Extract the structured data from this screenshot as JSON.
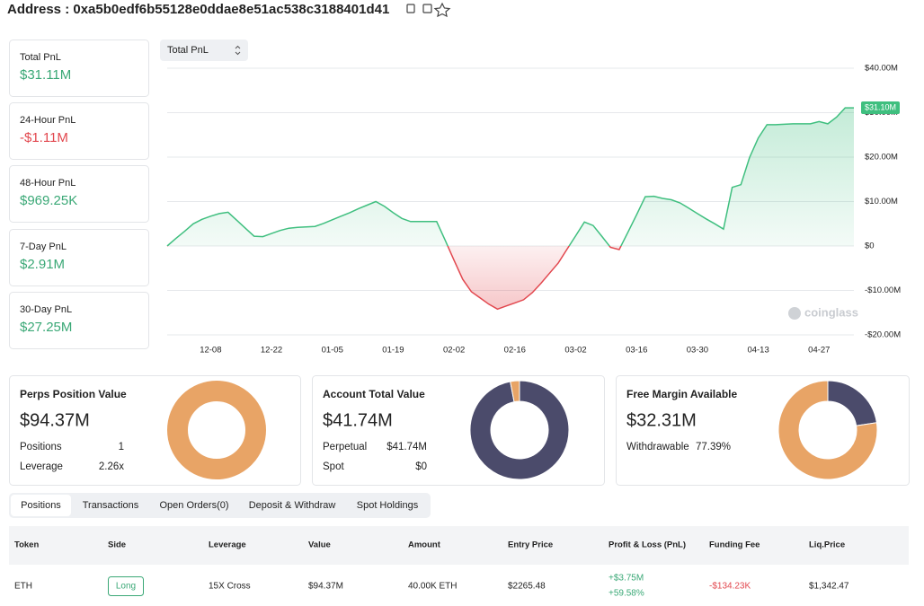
{
  "header": {
    "address": "Address : 0xa5b0edf6b55128e0ddae8e51ac538c3188401d41"
  },
  "pnl_cards": [
    {
      "label": "Total PnL",
      "value": "$31.11M"
    },
    {
      "label": "24-Hour PnL",
      "value": "-$1.11M"
    },
    {
      "label": "48-Hour PnL",
      "value": "$969.25K"
    },
    {
      "label": "7-Day PnL",
      "value": "$2.91M"
    },
    {
      "label": "30-Day PnL",
      "value": "$27.25M"
    }
  ],
  "dropdown": "Total PnL",
  "chart_data": [
    {
      "type": "area",
      "categories": [
        null,
        null,
        null,
        null,
        null,
        "12-08",
        null,
        null,
        null,
        null,
        null,
        null,
        "12-22",
        null,
        null,
        null,
        null,
        null,
        null,
        "01-05",
        null,
        null,
        null,
        null,
        null,
        null,
        "01-19",
        null,
        null,
        null,
        null,
        null,
        null,
        "02-02",
        null,
        null,
        null,
        null,
        null,
        null,
        "02-16",
        null,
        null,
        null,
        null,
        null,
        null,
        "03-02",
        null,
        null,
        null,
        null,
        null,
        null,
        "03-16",
        null,
        null,
        null,
        null,
        null,
        null,
        "03-30",
        null,
        null,
        null,
        null,
        null,
        null,
        "04-13",
        null,
        null,
        null,
        null,
        null,
        null,
        "04-27",
        null,
        null,
        null,
        null
      ],
      "values": [
        0,
        1.7,
        3.3,
        5.0,
        6.0,
        6.7,
        7.3,
        7.6,
        5.8,
        4.0,
        2.2,
        2.1,
        2.8,
        3.5,
        4.0,
        4.2,
        4.3,
        4.4,
        5.1,
        5.9,
        6.7,
        7.5,
        8.4,
        9.2,
        10.0,
        8.9,
        7.5,
        6.2,
        5.5,
        5.5,
        5.5,
        5.5,
        1.2,
        -3.2,
        -7.5,
        -10.3,
        -11.7,
        -13.1,
        -14.2,
        -13.5,
        -12.8,
        -12.1,
        -10.5,
        -8.4,
        -6.1,
        -3.8,
        -0.7,
        2.3,
        5.4,
        4.6,
        2.2,
        -0.3,
        -0.8,
        3.1,
        7.0,
        11.1,
        11.2,
        10.7,
        10.4,
        9.7,
        8.5,
        7.3,
        6.1,
        5.0,
        3.8,
        13.2,
        13.8,
        19.9,
        24.3,
        27.3,
        27.3,
        27.4,
        27.5,
        27.5,
        27.5,
        28.0,
        27.5,
        29.0,
        31.1,
        31.1
      ],
      "value_labels": [
        null,
        null,
        null,
        null,
        null,
        null,
        null,
        null,
        null,
        null,
        null,
        null,
        null,
        null,
        null,
        null,
        null,
        null,
        null,
        null,
        null,
        null,
        null,
        null,
        null,
        null,
        null,
        null,
        null,
        null,
        null,
        null,
        null,
        null,
        null,
        null,
        null,
        null,
        null,
        null,
        null,
        null,
        null,
        null,
        null,
        null,
        null,
        null,
        null,
        null,
        null,
        null,
        null,
        null,
        null,
        null,
        null,
        null,
        null,
        null,
        null,
        null,
        null,
        null,
        null,
        null,
        null,
        null,
        null,
        null,
        null,
        null,
        null,
        null,
        null,
        null,
        null,
        null,
        null,
        "$31.10M"
      ],
      "color": "#3fbf7f",
      "negative_color": "#e2474e",
      "ylim": [
        -20,
        40
      ],
      "yticks": [
        {
          "value": -20,
          "label": "-$20.00M"
        },
        {
          "value": -10,
          "label": "-$10.00M"
        },
        {
          "value": 0,
          "label": "$0"
        },
        {
          "value": 10,
          "label": "$10.00M"
        },
        {
          "value": 20,
          "label": "$20.00M"
        },
        {
          "value": 30,
          "label": "$30.00M"
        },
        {
          "value": 40,
          "label": "$40.00M"
        }
      ],
      "grid": true,
      "watermark": "coinglass"
    },
    {
      "type": "donut",
      "values": [
        100
      ],
      "colors": [
        "#e8a466"
      ]
    },
    {
      "type": "donut",
      "values": [
        97,
        3
      ],
      "colors": [
        "#4b4b6b",
        "#e8a466"
      ]
    },
    {
      "type": "donut",
      "values": [
        22.61,
        77.39
      ],
      "colors": [
        "#4b4b6b",
        "#e8a466"
      ]
    }
  ],
  "summary_cards": [
    {
      "title": "Perps Position Value",
      "value": "$94.37M",
      "rows": [
        [
          "Positions",
          "1"
        ],
        [
          "Leverage",
          "2.26x"
        ]
      ]
    },
    {
      "title": "Account Total Value",
      "value": "$41.74M",
      "rows": [
        [
          "Perpetual",
          "$41.74M"
        ],
        [
          "Spot",
          "$0"
        ]
      ]
    },
    {
      "title": "Free Margin Available",
      "value": "$32.31M",
      "rows": [
        [
          "Withdrawable",
          "77.39%"
        ]
      ]
    }
  ],
  "tabs": {
    "items": [
      "Positions",
      "Transactions",
      "Open Orders(0)",
      "Deposit & Withdraw",
      "Spot Holdings"
    ],
    "active": 0
  },
  "table": {
    "columns": [
      "Token",
      "Side",
      "Leverage",
      "Value",
      "Amount",
      "Entry Price",
      "Profit & Loss (PnL)",
      "Funding Fee",
      "Liq.Price"
    ],
    "rows": [
      [
        "ETH",
        "Long",
        "15X Cross",
        "$94.37M",
        "40.00K ETH",
        "$2265.48",
        [
          "+$3.75M",
          "+59.58%"
        ],
        "-$134.23K",
        "$1,342.47"
      ]
    ]
  }
}
